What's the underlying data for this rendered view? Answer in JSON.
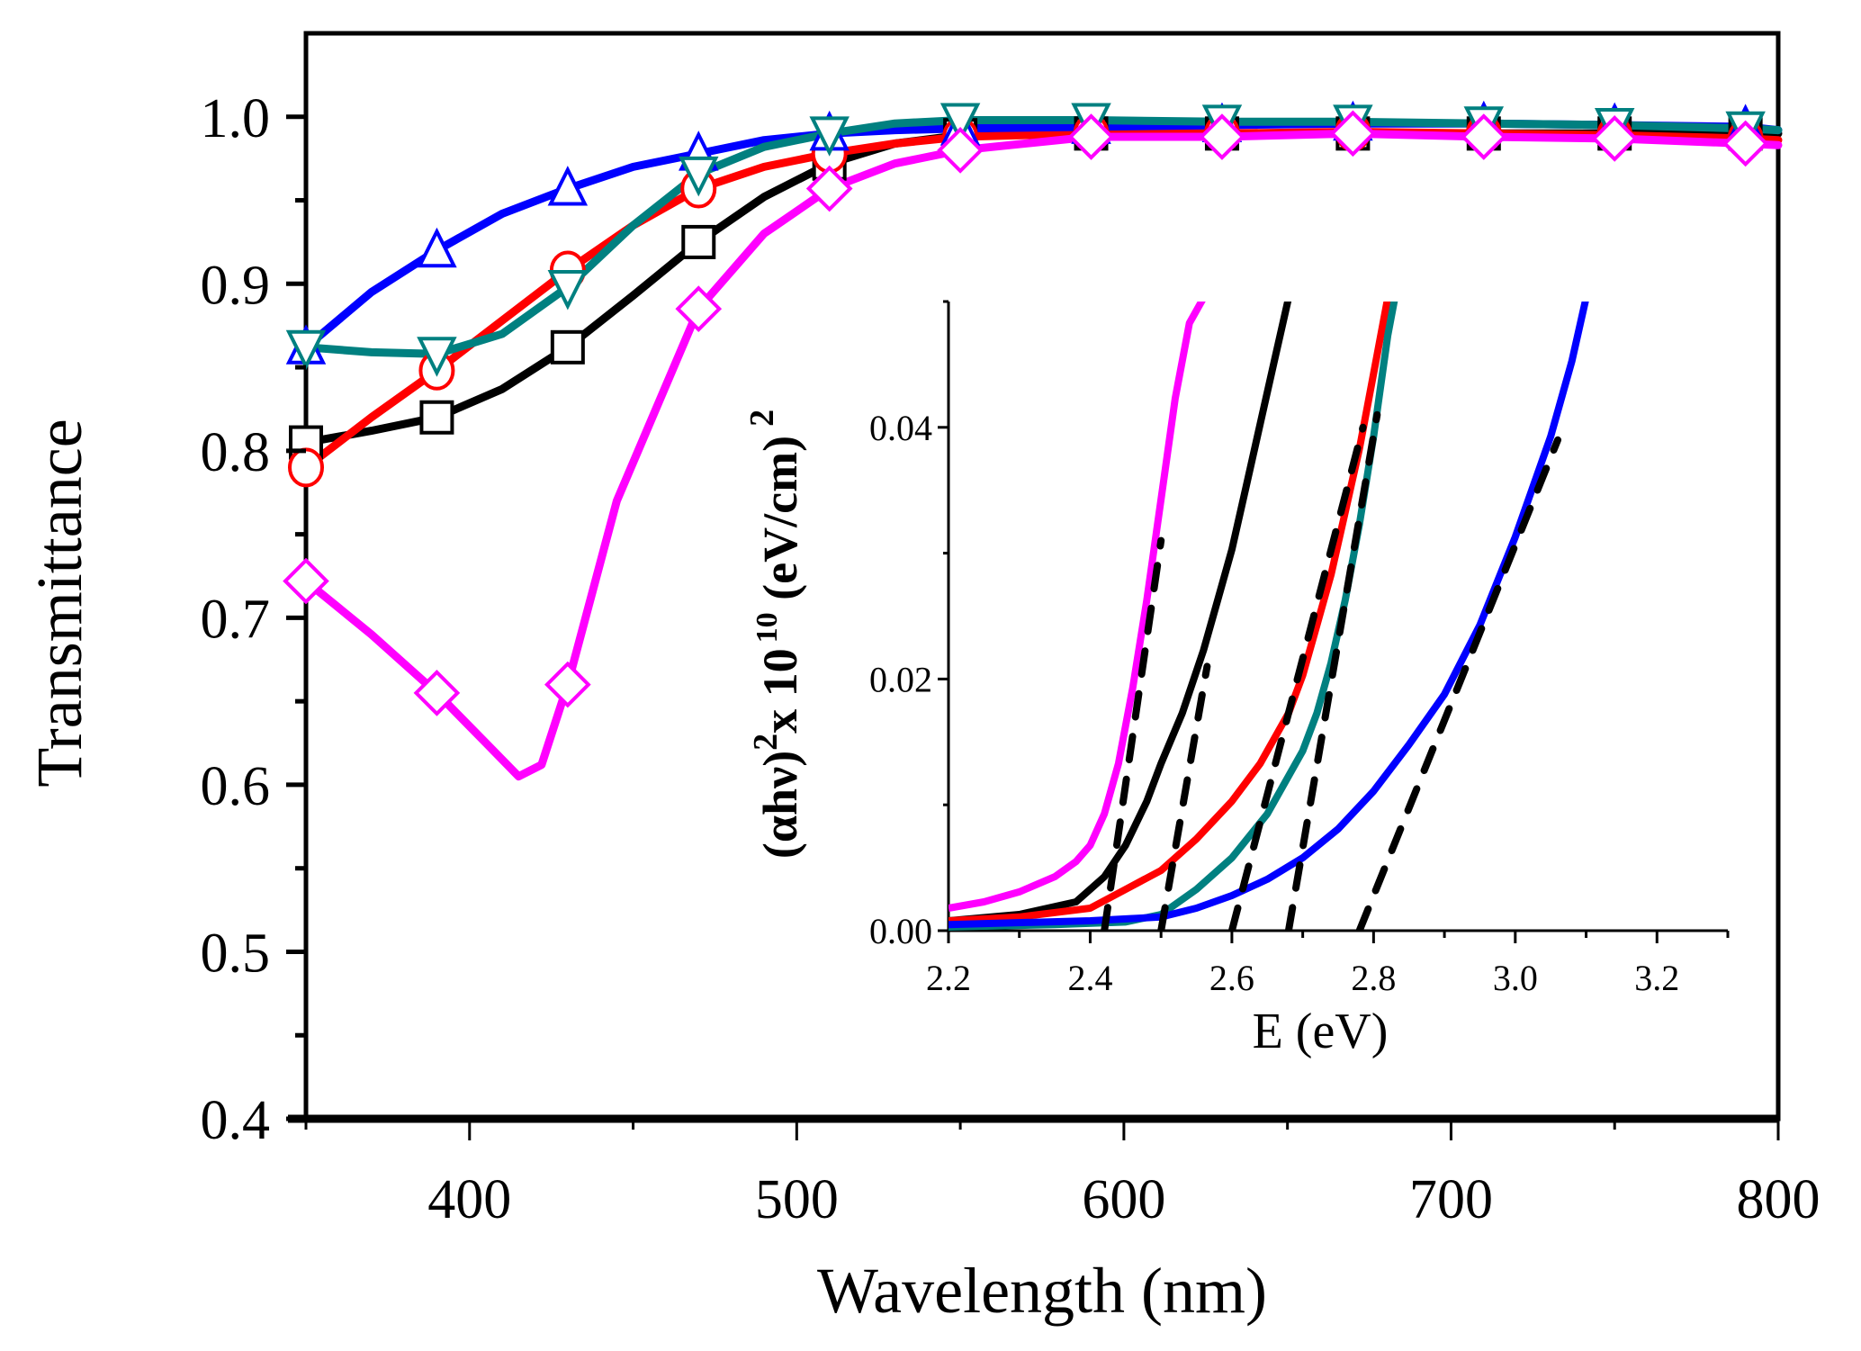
{
  "chart_data": [
    {
      "type": "line",
      "role": "main",
      "title": "",
      "xlabel": "Wavelength (nm)",
      "ylabel": "Transmittance",
      "xlim": [
        350,
        800
      ],
      "ylim": [
        0.4,
        1.05
      ],
      "xticks": [
        400,
        500,
        600,
        700,
        800
      ],
      "xtick_labels": [
        "400",
        "500",
        "600",
        "700",
        "800"
      ],
      "yticks": [
        0.4,
        0.5,
        0.6,
        0.7,
        0.8,
        0.9,
        1.0
      ],
      "ytick_labels": [
        "0.4",
        "0.5",
        "0.6",
        "0.7",
        "0.8",
        "0.9",
        "1.0"
      ],
      "grid": false,
      "legend": "none",
      "marker_x": [
        350,
        390,
        430,
        470,
        510,
        550,
        590,
        630,
        670,
        710,
        750,
        790
      ],
      "series": [
        {
          "name": "black-squares",
          "color": "#000000",
          "marker": "square",
          "x": [
            350,
            370,
            390,
            410,
            430,
            450,
            470,
            490,
            510,
            530,
            550,
            590,
            630,
            670,
            710,
            750,
            790,
            800
          ],
          "y": [
            0.805,
            0.812,
            0.82,
            0.837,
            0.862,
            0.893,
            0.925,
            0.952,
            0.972,
            0.984,
            0.989,
            0.99,
            0.99,
            0.99,
            0.99,
            0.99,
            0.99,
            0.99
          ]
        },
        {
          "name": "red-circles",
          "color": "#ff0000",
          "marker": "circle",
          "x": [
            350,
            370,
            390,
            410,
            430,
            450,
            470,
            490,
            510,
            530,
            550,
            590,
            630,
            670,
            710,
            750,
            790,
            800
          ],
          "y": [
            0.79,
            0.82,
            0.848,
            0.878,
            0.908,
            0.935,
            0.957,
            0.97,
            0.978,
            0.984,
            0.988,
            0.99,
            0.99,
            0.991,
            0.99,
            0.989,
            0.987,
            0.986
          ]
        },
        {
          "name": "blue-triangles-up",
          "color": "#0000ff",
          "marker": "triangle-up",
          "x": [
            350,
            370,
            390,
            410,
            430,
            450,
            470,
            490,
            510,
            530,
            550,
            590,
            630,
            670,
            710,
            750,
            790,
            800
          ],
          "y": [
            0.862,
            0.895,
            0.92,
            0.942,
            0.957,
            0.97,
            0.978,
            0.986,
            0.99,
            0.992,
            0.993,
            0.994,
            0.995,
            0.996,
            0.996,
            0.995,
            0.994,
            0.992
          ]
        },
        {
          "name": "teal-triangles-down",
          "color": "#008080",
          "marker": "triangle-down",
          "x": [
            350,
            370,
            390,
            410,
            430,
            450,
            470,
            490,
            510,
            530,
            550,
            590,
            630,
            670,
            710,
            750,
            790,
            800
          ],
          "y": [
            0.862,
            0.859,
            0.858,
            0.87,
            0.898,
            0.935,
            0.966,
            0.982,
            0.99,
            0.996,
            0.998,
            0.998,
            0.997,
            0.997,
            0.996,
            0.995,
            0.993,
            0.992
          ]
        },
        {
          "name": "magenta-diamonds",
          "color": "#ff00ff",
          "marker": "diamond",
          "x": [
            350,
            370,
            390,
            405,
            415,
            422,
            430,
            445,
            470,
            490,
            510,
            530,
            550,
            590,
            630,
            670,
            710,
            750,
            790,
            800
          ],
          "y": [
            0.722,
            0.69,
            0.655,
            0.625,
            0.605,
            0.612,
            0.66,
            0.77,
            0.885,
            0.93,
            0.957,
            0.972,
            0.98,
            0.988,
            0.988,
            0.99,
            0.988,
            0.987,
            0.984,
            0.983
          ]
        }
      ]
    },
    {
      "type": "line",
      "role": "inset",
      "title": "",
      "xlabel": "E (eV)",
      "ylabel_parts": {
        "prefix": "(αhν)",
        "sup1": "2",
        "mid": "x 10",
        "sup2": "10",
        "unit": " (eV/cm)",
        "sup3": "2"
      },
      "xlim": [
        2.2,
        3.3
      ],
      "ylim": [
        0.0,
        0.05
      ],
      "xticks": [
        2.2,
        2.4,
        2.6,
        2.8,
        3.0,
        3.2
      ],
      "xtick_labels": [
        "2.2",
        "2.4",
        "2.6",
        "2.8",
        "3.0",
        "3.2"
      ],
      "yticks": [
        0.0,
        0.02,
        0.04
      ],
      "ytick_labels": [
        "0.00",
        "0.02",
        "0.04"
      ],
      "minor_yticks": [
        0.01,
        0.03,
        0.05
      ],
      "grid": false,
      "legend": "none",
      "series": [
        {
          "name": "magenta",
          "color": "#ff00ff",
          "x": [
            2.2,
            2.25,
            2.3,
            2.35,
            2.38,
            2.4,
            2.42,
            2.44,
            2.46,
            2.48,
            2.5,
            2.52,
            2.54,
            2.56
          ],
          "y": [
            0.0015,
            0.002,
            0.0028,
            0.004,
            0.0052,
            0.0065,
            0.009,
            0.013,
            0.019,
            0.026,
            0.034,
            0.042,
            0.048,
            0.05
          ]
        },
        {
          "name": "black",
          "color": "#000000",
          "x": [
            2.2,
            2.3,
            2.38,
            2.42,
            2.45,
            2.48,
            2.5,
            2.53,
            2.56,
            2.58,
            2.6,
            2.62,
            2.64,
            2.66,
            2.68
          ],
          "y": [
            0.0005,
            0.001,
            0.002,
            0.004,
            0.0065,
            0.01,
            0.013,
            0.017,
            0.022,
            0.026,
            0.03,
            0.035,
            0.04,
            0.045,
            0.05
          ]
        },
        {
          "name": "red",
          "color": "#ff0000",
          "x": [
            2.2,
            2.3,
            2.4,
            2.45,
            2.5,
            2.55,
            2.6,
            2.64,
            2.68,
            2.7,
            2.72,
            2.74,
            2.76,
            2.78,
            2.8,
            2.82
          ],
          "y": [
            0.0005,
            0.0008,
            0.0015,
            0.003,
            0.0045,
            0.007,
            0.01,
            0.013,
            0.017,
            0.02,
            0.024,
            0.028,
            0.033,
            0.038,
            0.044,
            0.05
          ]
        },
        {
          "name": "teal",
          "color": "#008080",
          "x": [
            2.2,
            2.35,
            2.45,
            2.5,
            2.55,
            2.6,
            2.65,
            2.7,
            2.72,
            2.74,
            2.76,
            2.78,
            2.8,
            2.82,
            2.83
          ],
          "y": [
            0.0,
            0.0002,
            0.0004,
            0.001,
            0.003,
            0.0055,
            0.009,
            0.014,
            0.017,
            0.021,
            0.026,
            0.032,
            0.039,
            0.047,
            0.05
          ]
        },
        {
          "name": "blue",
          "color": "#0000ff",
          "x": [
            2.2,
            2.4,
            2.5,
            2.55,
            2.6,
            2.65,
            2.7,
            2.75,
            2.8,
            2.85,
            2.9,
            2.95,
            3.0,
            3.05,
            3.08,
            3.1
          ],
          "y": [
            0.0002,
            0.0005,
            0.0008,
            0.0015,
            0.0025,
            0.0038,
            0.0055,
            0.0078,
            0.0108,
            0.0145,
            0.0185,
            0.024,
            0.031,
            0.039,
            0.045,
            0.05
          ]
        }
      ],
      "fit_lines": [
        {
          "name": "magenta-fit",
          "color": "#000000",
          "style": "dashed",
          "x_intercept": 2.42,
          "x2": 2.5,
          "y2": 0.031
        },
        {
          "name": "black-fit",
          "color": "#000000",
          "style": "dashed",
          "x_intercept": 2.5,
          "x2": 2.565,
          "y2": 0.021
        },
        {
          "name": "red-fit",
          "color": "#000000",
          "style": "dashed",
          "x_intercept": 2.6,
          "x2": 2.785,
          "y2": 0.04
        },
        {
          "name": "teal-fit",
          "color": "#000000",
          "style": "dashed",
          "x_intercept": 2.68,
          "x2": 2.805,
          "y2": 0.041
        },
        {
          "name": "blue-fit",
          "color": "#000000",
          "style": "dashed",
          "x_intercept": 2.78,
          "x2": 3.06,
          "y2": 0.039
        }
      ]
    }
  ]
}
